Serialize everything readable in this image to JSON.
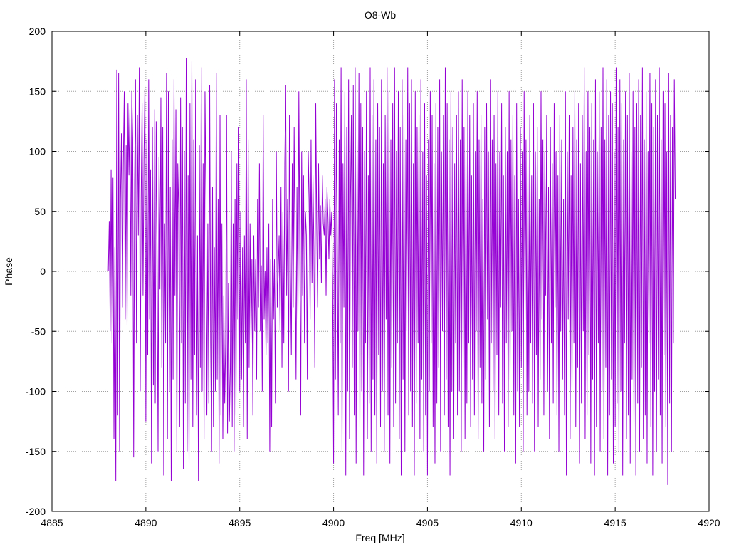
{
  "chart_data": {
    "type": "line",
    "title": "O8-Wb",
    "xlabel": "Freq [MHz]",
    "ylabel": "Phase",
    "xlim": [
      4885,
      4920
    ],
    "ylim": [
      -200,
      200
    ],
    "x_ticks": [
      "4885",
      "4890",
      "4895",
      "4900",
      "4905",
      "4910",
      "4915",
      "4920"
    ],
    "y_ticks": [
      "200",
      "150",
      "100",
      "50",
      "0",
      "-50",
      "-100",
      "-150",
      "-200"
    ],
    "grid": true,
    "legend": "none",
    "series": [
      {
        "color": "#9400d3",
        "x_start": 4888.0,
        "x_step": 0.05,
        "values": [
          0,
          42,
          -50,
          85,
          -60,
          78,
          -140,
          20,
          -175,
          168,
          -120,
          165,
          -150,
          60,
          115,
          -30,
          90,
          150,
          -40,
          105,
          -45,
          140,
          80,
          135,
          -20,
          150,
          110,
          -155,
          75,
          160,
          -60,
          130,
          30,
          170,
          -100,
          60,
          140,
          -20,
          95,
          155,
          -125,
          110,
          -70,
          160,
          -40,
          85,
          -160,
          120,
          -95,
          135,
          -110,
          125,
          10,
          -150,
          95,
          -15,
          145,
          -80,
          120,
          -170,
          40,
          -60,
          165,
          -140,
          150,
          -100,
          70,
          -175,
          110,
          -90,
          160,
          -20,
          135,
          -150,
          90,
          50,
          -130,
          145,
          -60,
          120,
          -165,
          100,
          -110,
          178,
          -150,
          80,
          -160,
          140,
          -90,
          175,
          -130,
          110,
          -70,
          160,
          -120,
          30,
          -175,
          105,
          -80,
          170,
          -100,
          90,
          -140,
          150,
          60,
          -120,
          40,
          -110,
          155,
          -60,
          -150,
          70,
          -130,
          20,
          -100,
          165,
          -90,
          60,
          -160,
          130,
          -120,
          40,
          -140,
          -20,
          -110,
          -60,
          130,
          -135,
          -10,
          -125,
          -80,
          100,
          -130,
          40,
          -150,
          60,
          -120,
          90,
          -40,
          120,
          -100,
          50,
          -90,
          20,
          -130,
          30,
          -60,
          160,
          -140,
          110,
          -80,
          40,
          -60,
          10,
          -120,
          30,
          -50,
          10,
          -90,
          60,
          -30,
          90,
          -50,
          5,
          -100,
          130,
          -40,
          0,
          -70,
          20,
          -60,
          40,
          -150,
          10,
          -130,
          60,
          -40,
          10,
          -110,
          100,
          -30,
          0,
          30,
          -50,
          70,
          -80,
          50,
          -60,
          90,
          155,
          -20,
          60,
          -100,
          130,
          0,
          -70,
          90,
          -30,
          120,
          10,
          -90,
          70,
          -40,
          150,
          20,
          -120,
          100,
          -20,
          80,
          -60,
          50,
          30,
          -90,
          100,
          60,
          -40,
          110,
          -10,
          80,
          20,
          -80,
          140,
          40,
          -30,
          90,
          10,
          55,
          -10,
          80,
          40,
          30,
          60,
          -20,
          70,
          45,
          10,
          60,
          30,
          50,
          -10,
          -160,
          160,
          -90,
          140,
          20,
          -120,
          110,
          -60,
          170,
          -150,
          90,
          -30,
          150,
          -170,
          120,
          -100,
          160,
          -140,
          60,
          130,
          -80,
          155,
          -120,
          170,
          -160,
          110,
          -50,
          165,
          -130,
          140,
          -100,
          120,
          -170,
          100,
          -60,
          150,
          -140,
          80,
          -110,
          170,
          -150,
          130,
          -90,
          160,
          -120,
          110,
          -160,
          140,
          -70,
          120,
          -130,
          160,
          -100,
          90,
          -150,
          130,
          -40,
          170,
          -120,
          150,
          -160,
          110,
          -80,
          140,
          -130,
          170,
          -110,
          100,
          -60,
          150,
          -140,
          120,
          -170,
          160,
          -90,
          130,
          -150,
          110,
          -50,
          170,
          -120,
          140,
          -100,
          160,
          -130,
          90,
          -170,
          150,
          -110,
          120,
          -60,
          130,
          -140,
          160,
          -90,
          100,
          -150,
          140,
          -120,
          80,
          -170,
          110,
          -100,
          150,
          -60,
          130,
          -130,
          90,
          -160,
          140,
          -110,
          120,
          -80,
          160,
          -150,
          100,
          -50,
          130,
          -120,
          170,
          -90,
          140,
          -130,
          110,
          -170,
          150,
          -100,
          120,
          -140,
          90,
          -60,
          130,
          -120,
          150,
          -100,
          110,
          -150,
          160,
          -80,
          120,
          -140,
          100,
          -110,
          150,
          -60,
          130,
          -130,
          80,
          -90,
          140,
          -120,
          100,
          -50,
          150,
          -140,
          110,
          -80,
          130,
          -110,
          60,
          -150,
          120,
          -90,
          140,
          -40,
          100,
          -130,
          160,
          -60,
          110,
          -100,
          130,
          -140,
          90,
          -70,
          150,
          -120,
          100,
          -30,
          140,
          -110,
          80,
          -150,
          120,
          -60,
          100,
          -130,
          150,
          -90,
          110,
          -50,
          130,
          -120,
          80,
          -160,
          140,
          -100,
          60,
          -130,
          120,
          -80,
          100,
          -150,
          150,
          -40,
          110,
          -120,
          90,
          -100,
          130,
          -60,
          80,
          -110,
          140,
          -150,
          100,
          -70,
          120,
          -130,
          60,
          -90,
          150,
          -40,
          110,
          -120,
          100,
          -20,
          130,
          -100,
          70,
          -140,
          120,
          -60,
          90,
          -110,
          140,
          -30,
          100,
          -120,
          80,
          -150,
          130,
          -50,
          110,
          -90,
          60,
          -120,
          150,
          -170,
          100,
          -40,
          130,
          -140,
          80,
          -100,
          120,
          -60,
          150,
          -130,
          110,
          -80,
          140,
          -160,
          90,
          -110,
          130,
          -50,
          170,
          -140,
          100,
          -120,
          150,
          -70,
          120,
          -160,
          140,
          -90,
          110,
          -170,
          160,
          -130,
          100,
          -60,
          150,
          -150,
          120,
          -100,
          170,
          -140,
          110,
          -80,
          160,
          -170,
          130,
          -120,
          150,
          -90,
          140,
          -160,
          100,
          -130,
          170,
          -110,
          120,
          -150,
          160,
          -100,
          140,
          -170,
          110,
          -60,
          150,
          -140,
          130,
          -120,
          165,
          -160,
          100,
          -90,
          150,
          -130,
          120,
          -170,
          140,
          -110,
          160,
          -150,
          130,
          -80,
          170,
          -140,
          110,
          -120,
          150,
          -160,
          100,
          -60,
          165,
          -130,
          140,
          -170,
          120,
          -100,
          160,
          -150,
          130,
          -90,
          170,
          -120,
          110,
          -160,
          150,
          -70,
          140,
          -130,
          100,
          -178,
          165,
          -110,
          130,
          -150,
          120,
          -60,
          160,
          60
        ]
      }
    ]
  }
}
